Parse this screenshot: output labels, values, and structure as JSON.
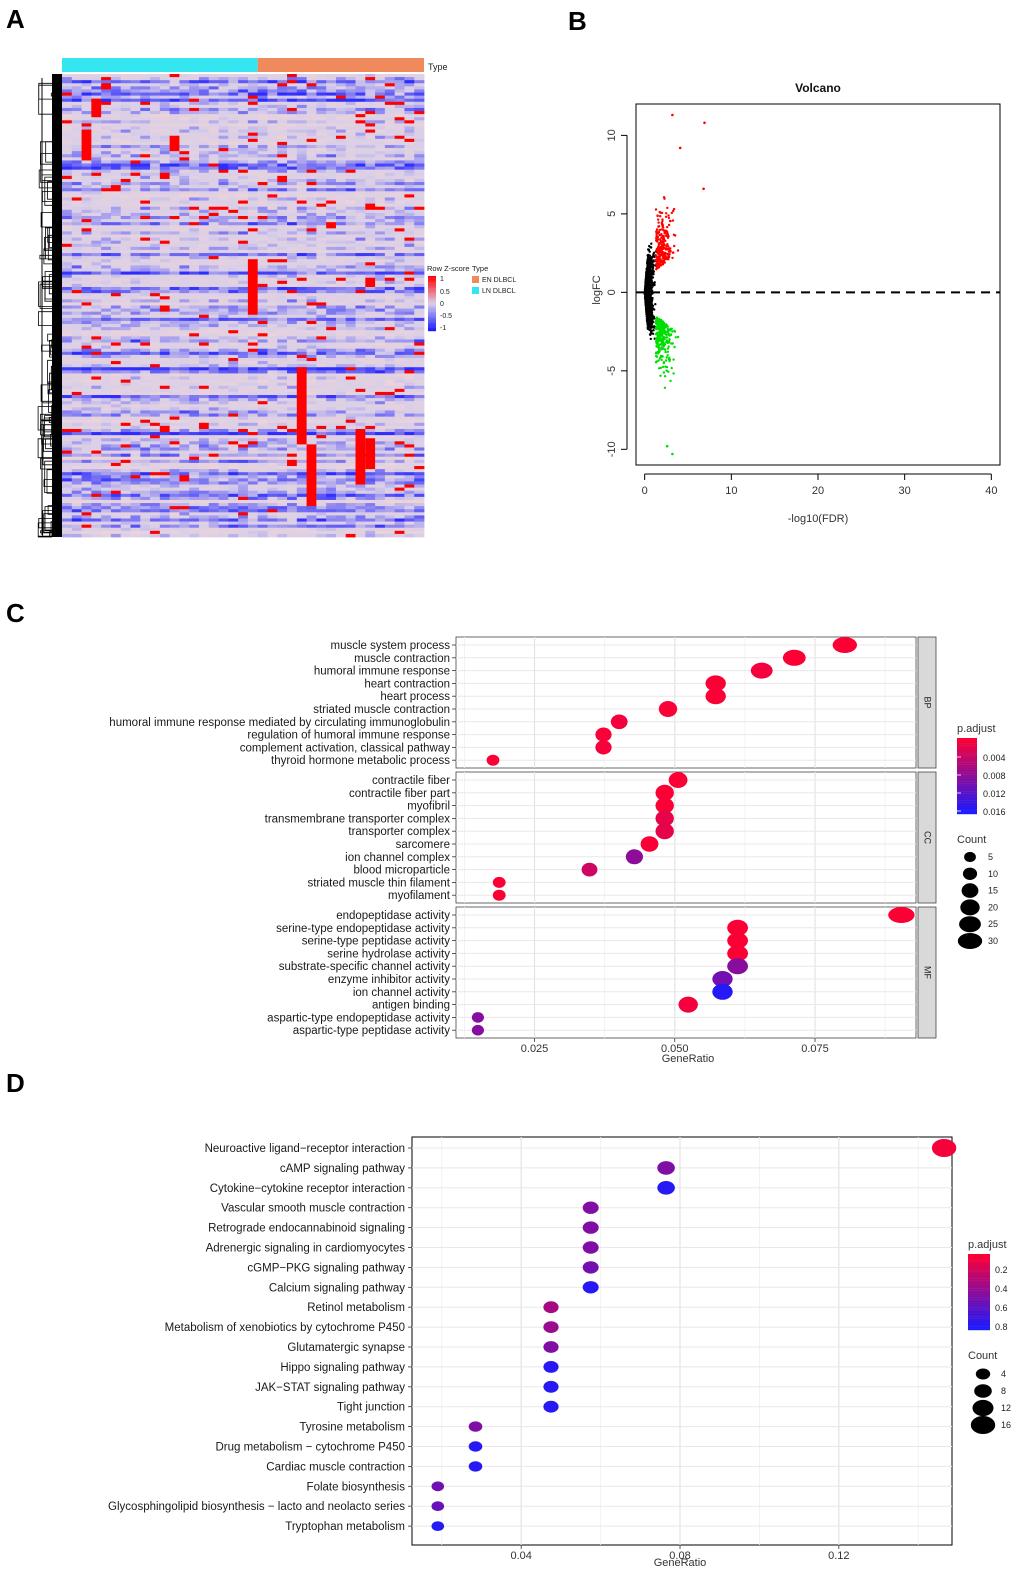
{
  "panels": {
    "a": "A",
    "b": "B",
    "c": "C",
    "d": "D"
  },
  "colors": {
    "en_dlbcl": "#f08a5d",
    "ln_dlbcl": "#33e6f0",
    "heat_high": "#ff0000",
    "heat_mid": "#d9cfe8",
    "heat_low": "#1a1aff",
    "volcano_up": "#ff0000",
    "volcano_down": "#00dd00",
    "volcano_ns": "#000000",
    "padj_low": "#ff0033",
    "padj_high": "#1a1aff",
    "facet_strip": "#d9d9d9"
  },
  "chart_data": [
    {
      "type": "heatmap",
      "panel": "A",
      "annotation_label": "Type",
      "annotation_groups": [
        {
          "name": "LN DLBCL",
          "samples": 20
        },
        {
          "name": "EN DLBCL",
          "samples": 17
        }
      ],
      "legend": {
        "row_title": "Row Z-score",
        "type_title": "Type",
        "ticks": [
          "1",
          "0.5",
          "0",
          "-0.5",
          "-1"
        ],
        "types": [
          "EN DLBCL",
          "LN DLBCL"
        ]
      },
      "rows": 150,
      "columns": 37
    },
    {
      "type": "scatter",
      "panel": "B",
      "title": "Volcano",
      "xlabel": "-log10(FDR)",
      "ylabel": "logFC",
      "xlim": [
        -1,
        41
      ],
      "ylim": [
        -11,
        12
      ],
      "xticks": [
        "0",
        "10",
        "20",
        "30",
        "40"
      ],
      "yticks": [
        "-10",
        "-5",
        "0",
        "5",
        "10"
      ],
      "hline_y": 0,
      "series": [
        {
          "name": "up",
          "color": "#ff0000"
        },
        {
          "name": "down",
          "color": "#00dd00"
        },
        {
          "name": "not significant",
          "color": "#000000"
        }
      ],
      "notable_points": [
        [
          3.2,
          11.3
        ],
        [
          6.9,
          10.8
        ],
        [
          4.1,
          9.2
        ],
        [
          6.8,
          6.6
        ],
        [
          2.6,
          -9.8
        ],
        [
          3.2,
          -10.3
        ]
      ]
    },
    {
      "type": "scatter",
      "panel": "C",
      "xlabel": "GeneRatio",
      "xlim": [
        0.011,
        0.093
      ],
      "xticks": [
        0.025,
        0.05,
        0.075
      ],
      "xtick_labels": [
        "0.025",
        "0.050",
        "0.075"
      ],
      "color_legend": {
        "title": "p.adjust",
        "ticks": [
          "0.004",
          "0.008",
          "0.012",
          "0.016"
        ],
        "min": 0,
        "max": 0.017
      },
      "size_legend": {
        "title": "Count",
        "values": [
          5,
          10,
          15,
          20,
          25,
          30
        ]
      },
      "facets": [
        {
          "name": "BP",
          "terms": [
            {
              "term": "muscle system process",
              "ratio": 0.0803,
              "count": 30,
              "padj": 0.0002
            },
            {
              "term": "muscle contraction",
              "ratio": 0.0713,
              "count": 27,
              "padj": 0.0002
            },
            {
              "term": "humoral immune response",
              "ratio": 0.0655,
              "count": 25,
              "padj": 0.0008
            },
            {
              "term": "heart contraction",
              "ratio": 0.0573,
              "count": 22,
              "padj": 0.0002
            },
            {
              "term": "heart process",
              "ratio": 0.0573,
              "count": 22,
              "padj": 0.0003
            },
            {
              "term": "striated muscle contraction",
              "ratio": 0.0488,
              "count": 18,
              "padj": 0.0004
            },
            {
              "term": "humoral immune response mediated by circulating immunoglobulin",
              "ratio": 0.0401,
              "count": 15,
              "padj": 0.0008
            },
            {
              "term": "regulation of humoral immune response",
              "ratio": 0.0373,
              "count": 14,
              "padj": 0.0004
            },
            {
              "term": "complement activation, classical pathway",
              "ratio": 0.0373,
              "count": 14,
              "padj": 0.0007
            },
            {
              "term": "thyroid hormone metabolic process",
              "ratio": 0.0176,
              "count": 7,
              "padj": 0.0004
            }
          ]
        },
        {
          "name": "CC",
          "terms": [
            {
              "term": "contractile fiber",
              "ratio": 0.0506,
              "count": 19,
              "padj": 0.0002
            },
            {
              "term": "contractile fiber part",
              "ratio": 0.0482,
              "count": 18,
              "padj": 0.0002
            },
            {
              "term": "myofibril",
              "ratio": 0.0482,
              "count": 18,
              "padj": 0.0003
            },
            {
              "term": "transmembrane transporter complex",
              "ratio": 0.0482,
              "count": 18,
              "padj": 0.0018
            },
            {
              "term": "transporter complex",
              "ratio": 0.0482,
              "count": 18,
              "padj": 0.0018
            },
            {
              "term": "sarcomere",
              "ratio": 0.0455,
              "count": 17,
              "padj": 0.0003
            },
            {
              "term": "ion channel complex",
              "ratio": 0.0428,
              "count": 16,
              "padj": 0.0085
            },
            {
              "term": "blood microparticle",
              "ratio": 0.0348,
              "count": 13,
              "padj": 0.0038
            },
            {
              "term": "striated muscle thin filament",
              "ratio": 0.0187,
              "count": 7,
              "padj": 0.0002
            },
            {
              "term": "myofilament",
              "ratio": 0.0187,
              "count": 7,
              "padj": 0.0002
            }
          ]
        },
        {
          "name": "MF",
          "terms": [
            {
              "term": "endopeptidase activity",
              "ratio": 0.0904,
              "count": 34,
              "padj": 0.0002
            },
            {
              "term": "serine-type endopeptidase activity",
              "ratio": 0.0612,
              "count": 23,
              "padj": 0.0002
            },
            {
              "term": "serine-type peptidase activity",
              "ratio": 0.0612,
              "count": 23,
              "padj": 0.0002
            },
            {
              "term": "serine hydrolase activity",
              "ratio": 0.0612,
              "count": 23,
              "padj": 0.0002
            },
            {
              "term": "substrate-specific channel activity",
              "ratio": 0.0612,
              "count": 23,
              "padj": 0.0088
            },
            {
              "term": "enzyme inhibitor activity",
              "ratio": 0.0585,
              "count": 22,
              "padj": 0.0105
            },
            {
              "term": "ion channel activity",
              "ratio": 0.0585,
              "count": 22,
              "padj": 0.0162
            },
            {
              "term": "antigen binding",
              "ratio": 0.0524,
              "count": 20,
              "padj": 0.0008
            },
            {
              "term": "aspartic-type endopeptidase activity",
              "ratio": 0.0149,
              "count": 6,
              "padj": 0.0092
            },
            {
              "term": "aspartic-type peptidase activity",
              "ratio": 0.0149,
              "count": 6,
              "padj": 0.0092
            }
          ]
        }
      ]
    },
    {
      "type": "scatter",
      "panel": "D",
      "xlabel": "GeneRatio",
      "xlim": [
        0.0125,
        0.1485
      ],
      "xticks": [
        0.04,
        0.08,
        0.12
      ],
      "xtick_labels": [
        "0.04",
        "0.08",
        "0.12"
      ],
      "color_legend": {
        "title": "p.adjust",
        "ticks": [
          "0.2",
          "0.4",
          "0.6",
          "0.8"
        ],
        "min": 0,
        "max": 0.9
      },
      "size_legend": {
        "title": "Count",
        "values": [
          4,
          8,
          12,
          16
        ]
      },
      "terms": [
        {
          "term": "Neuroactive ligand−receptor interaction",
          "ratio": 0.1465,
          "count": 16,
          "padj": 0.03
        },
        {
          "term": "cAMP signaling pathway",
          "ratio": 0.0765,
          "count": 8,
          "padj": 0.5
        },
        {
          "term": "Cytokine−cytokine receptor interaction",
          "ratio": 0.0765,
          "count": 8,
          "padj": 0.85
        },
        {
          "term": "Vascular smooth muscle contraction",
          "ratio": 0.0575,
          "count": 6,
          "padj": 0.5
        },
        {
          "term": "Retrograde endocannabinoid signaling",
          "ratio": 0.0575,
          "count": 6,
          "padj": 0.5
        },
        {
          "term": "Adrenergic signaling in cardiomyocytes",
          "ratio": 0.0575,
          "count": 6,
          "padj": 0.5
        },
        {
          "term": "cGMP−PKG signaling pathway",
          "ratio": 0.0575,
          "count": 6,
          "padj": 0.55
        },
        {
          "term": "Calcium signaling pathway",
          "ratio": 0.0575,
          "count": 6,
          "padj": 0.85
        },
        {
          "term": "Retinol metabolism",
          "ratio": 0.0475,
          "count": 5,
          "padj": 0.35
        },
        {
          "term": "Metabolism of xenobiotics by cytochrome P450",
          "ratio": 0.0475,
          "count": 5,
          "padj": 0.4
        },
        {
          "term": "Glutamatergic synapse",
          "ratio": 0.0475,
          "count": 5,
          "padj": 0.5
        },
        {
          "term": "Hippo signaling pathway",
          "ratio": 0.0475,
          "count": 5,
          "padj": 0.85
        },
        {
          "term": "JAK−STAT signaling pathway",
          "ratio": 0.0475,
          "count": 5,
          "padj": 0.85
        },
        {
          "term": "Tight junction",
          "ratio": 0.0475,
          "count": 5,
          "padj": 0.85
        },
        {
          "term": "Tyrosine metabolism",
          "ratio": 0.0285,
          "count": 3,
          "padj": 0.5
        },
        {
          "term": "Drug metabolism − cytochrome P450",
          "ratio": 0.0285,
          "count": 3,
          "padj": 0.85
        },
        {
          "term": "Cardiac muscle contraction",
          "ratio": 0.0285,
          "count": 3,
          "padj": 0.85
        },
        {
          "term": "Folate biosynthesis",
          "ratio": 0.019,
          "count": 2,
          "padj": 0.55
        },
        {
          "term": "Glycosphingolipid biosynthesis − lacto and neolacto series",
          "ratio": 0.019,
          "count": 2,
          "padj": 0.6
        },
        {
          "term": "Tryptophan metabolism",
          "ratio": 0.019,
          "count": 2,
          "padj": 0.85
        }
      ]
    }
  ]
}
